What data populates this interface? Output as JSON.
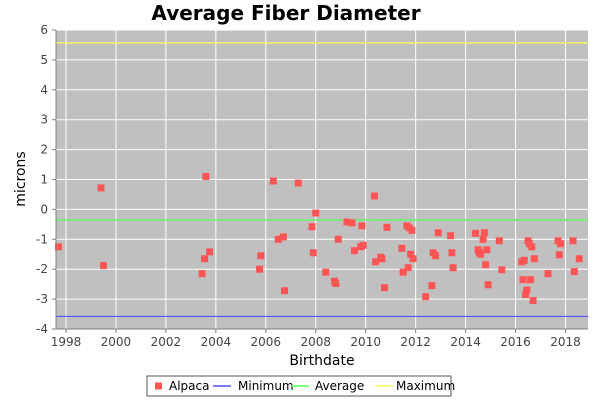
{
  "chart_data": {
    "type": "scatter",
    "title": "Average Fiber Diameter",
    "xlabel": "Birthdate",
    "ylabel": "microns",
    "xlim": [
      1997.6,
      2018.9
    ],
    "ylim": [
      -4,
      6
    ],
    "x_ticks": [
      "1998",
      "2000",
      "2002",
      "2004",
      "2006",
      "2008",
      "2010",
      "2012",
      "2014",
      "2016",
      "2018"
    ],
    "y_ticks": [
      "-4",
      "-3",
      "-2",
      "-1",
      "0",
      "1",
      "2",
      "3",
      "4",
      "5",
      "6"
    ],
    "grid": true,
    "legend_position": "bottom",
    "series": [
      {
        "name": "Alpaca",
        "kind": "scatter",
        "color": "#ff5555",
        "points": [
          [
            1997.7,
            -1.25
          ],
          [
            1999.4,
            0.72
          ],
          [
            1999.5,
            -1.88
          ],
          [
            2003.45,
            -2.15
          ],
          [
            2003.55,
            -1.65
          ],
          [
            2003.6,
            1.1
          ],
          [
            2003.75,
            -1.42
          ],
          [
            2005.75,
            -2.0
          ],
          [
            2005.8,
            -1.55
          ],
          [
            2006.3,
            0.95
          ],
          [
            2006.5,
            -1.0
          ],
          [
            2006.7,
            -0.92
          ],
          [
            2006.75,
            -2.72
          ],
          [
            2007.3,
            0.88
          ],
          [
            2007.85,
            -0.58
          ],
          [
            2007.9,
            -1.45
          ],
          [
            2008.0,
            -0.12
          ],
          [
            2008.4,
            -2.1
          ],
          [
            2008.75,
            -2.4
          ],
          [
            2008.8,
            -2.48
          ],
          [
            2008.9,
            -1.0
          ],
          [
            2009.25,
            -0.42
          ],
          [
            2009.45,
            -0.45
          ],
          [
            2009.55,
            -1.38
          ],
          [
            2009.8,
            -1.25
          ],
          [
            2009.85,
            -0.55
          ],
          [
            2009.9,
            -1.2
          ],
          [
            2010.35,
            0.45
          ],
          [
            2010.4,
            -1.75
          ],
          [
            2010.6,
            -1.6
          ],
          [
            2010.65,
            -1.65
          ],
          [
            2010.75,
            -2.62
          ],
          [
            2010.85,
            -0.6
          ],
          [
            2011.45,
            -1.3
          ],
          [
            2011.5,
            -2.1
          ],
          [
            2011.65,
            -0.55
          ],
          [
            2011.7,
            -1.95
          ],
          [
            2011.75,
            -0.62
          ],
          [
            2011.8,
            -1.5
          ],
          [
            2011.85,
            -0.7
          ],
          [
            2011.9,
            -1.65
          ],
          [
            2012.4,
            -2.92
          ],
          [
            2012.65,
            -2.55
          ],
          [
            2012.7,
            -1.45
          ],
          [
            2012.8,
            -1.55
          ],
          [
            2012.9,
            -0.78
          ],
          [
            2013.4,
            -0.88
          ],
          [
            2013.45,
            -1.45
          ],
          [
            2013.5,
            -1.95
          ],
          [
            2014.4,
            -0.8
          ],
          [
            2014.5,
            -1.35
          ],
          [
            2014.55,
            -1.45
          ],
          [
            2014.6,
            -1.5
          ],
          [
            2014.7,
            -1.0
          ],
          [
            2014.75,
            -0.78
          ],
          [
            2014.8,
            -1.85
          ],
          [
            2014.85,
            -1.35
          ],
          [
            2014.9,
            -2.52
          ],
          [
            2015.35,
            -1.05
          ],
          [
            2015.45,
            -2.02
          ],
          [
            2016.25,
            -1.75
          ],
          [
            2016.3,
            -2.35
          ],
          [
            2016.35,
            -1.7
          ],
          [
            2016.4,
            -2.85
          ],
          [
            2016.45,
            -2.7
          ],
          [
            2016.5,
            -1.05
          ],
          [
            2016.55,
            -1.15
          ],
          [
            2016.6,
            -2.35
          ],
          [
            2016.65,
            -1.25
          ],
          [
            2016.7,
            -3.05
          ],
          [
            2016.75,
            -1.65
          ],
          [
            2017.3,
            -2.15
          ],
          [
            2017.7,
            -1.05
          ],
          [
            2017.75,
            -1.52
          ],
          [
            2017.8,
            -1.15
          ],
          [
            2018.3,
            -1.05
          ],
          [
            2018.35,
            -2.08
          ],
          [
            2018.55,
            -1.65
          ]
        ]
      },
      {
        "name": "Minimum",
        "kind": "line",
        "color": "#5555ff",
        "value": -3.58
      },
      {
        "name": "Average",
        "kind": "line",
        "color": "#55ff55",
        "value": -0.35
      },
      {
        "name": "Maximum",
        "kind": "line",
        "color": "#ffff55",
        "value": 5.57
      }
    ]
  }
}
